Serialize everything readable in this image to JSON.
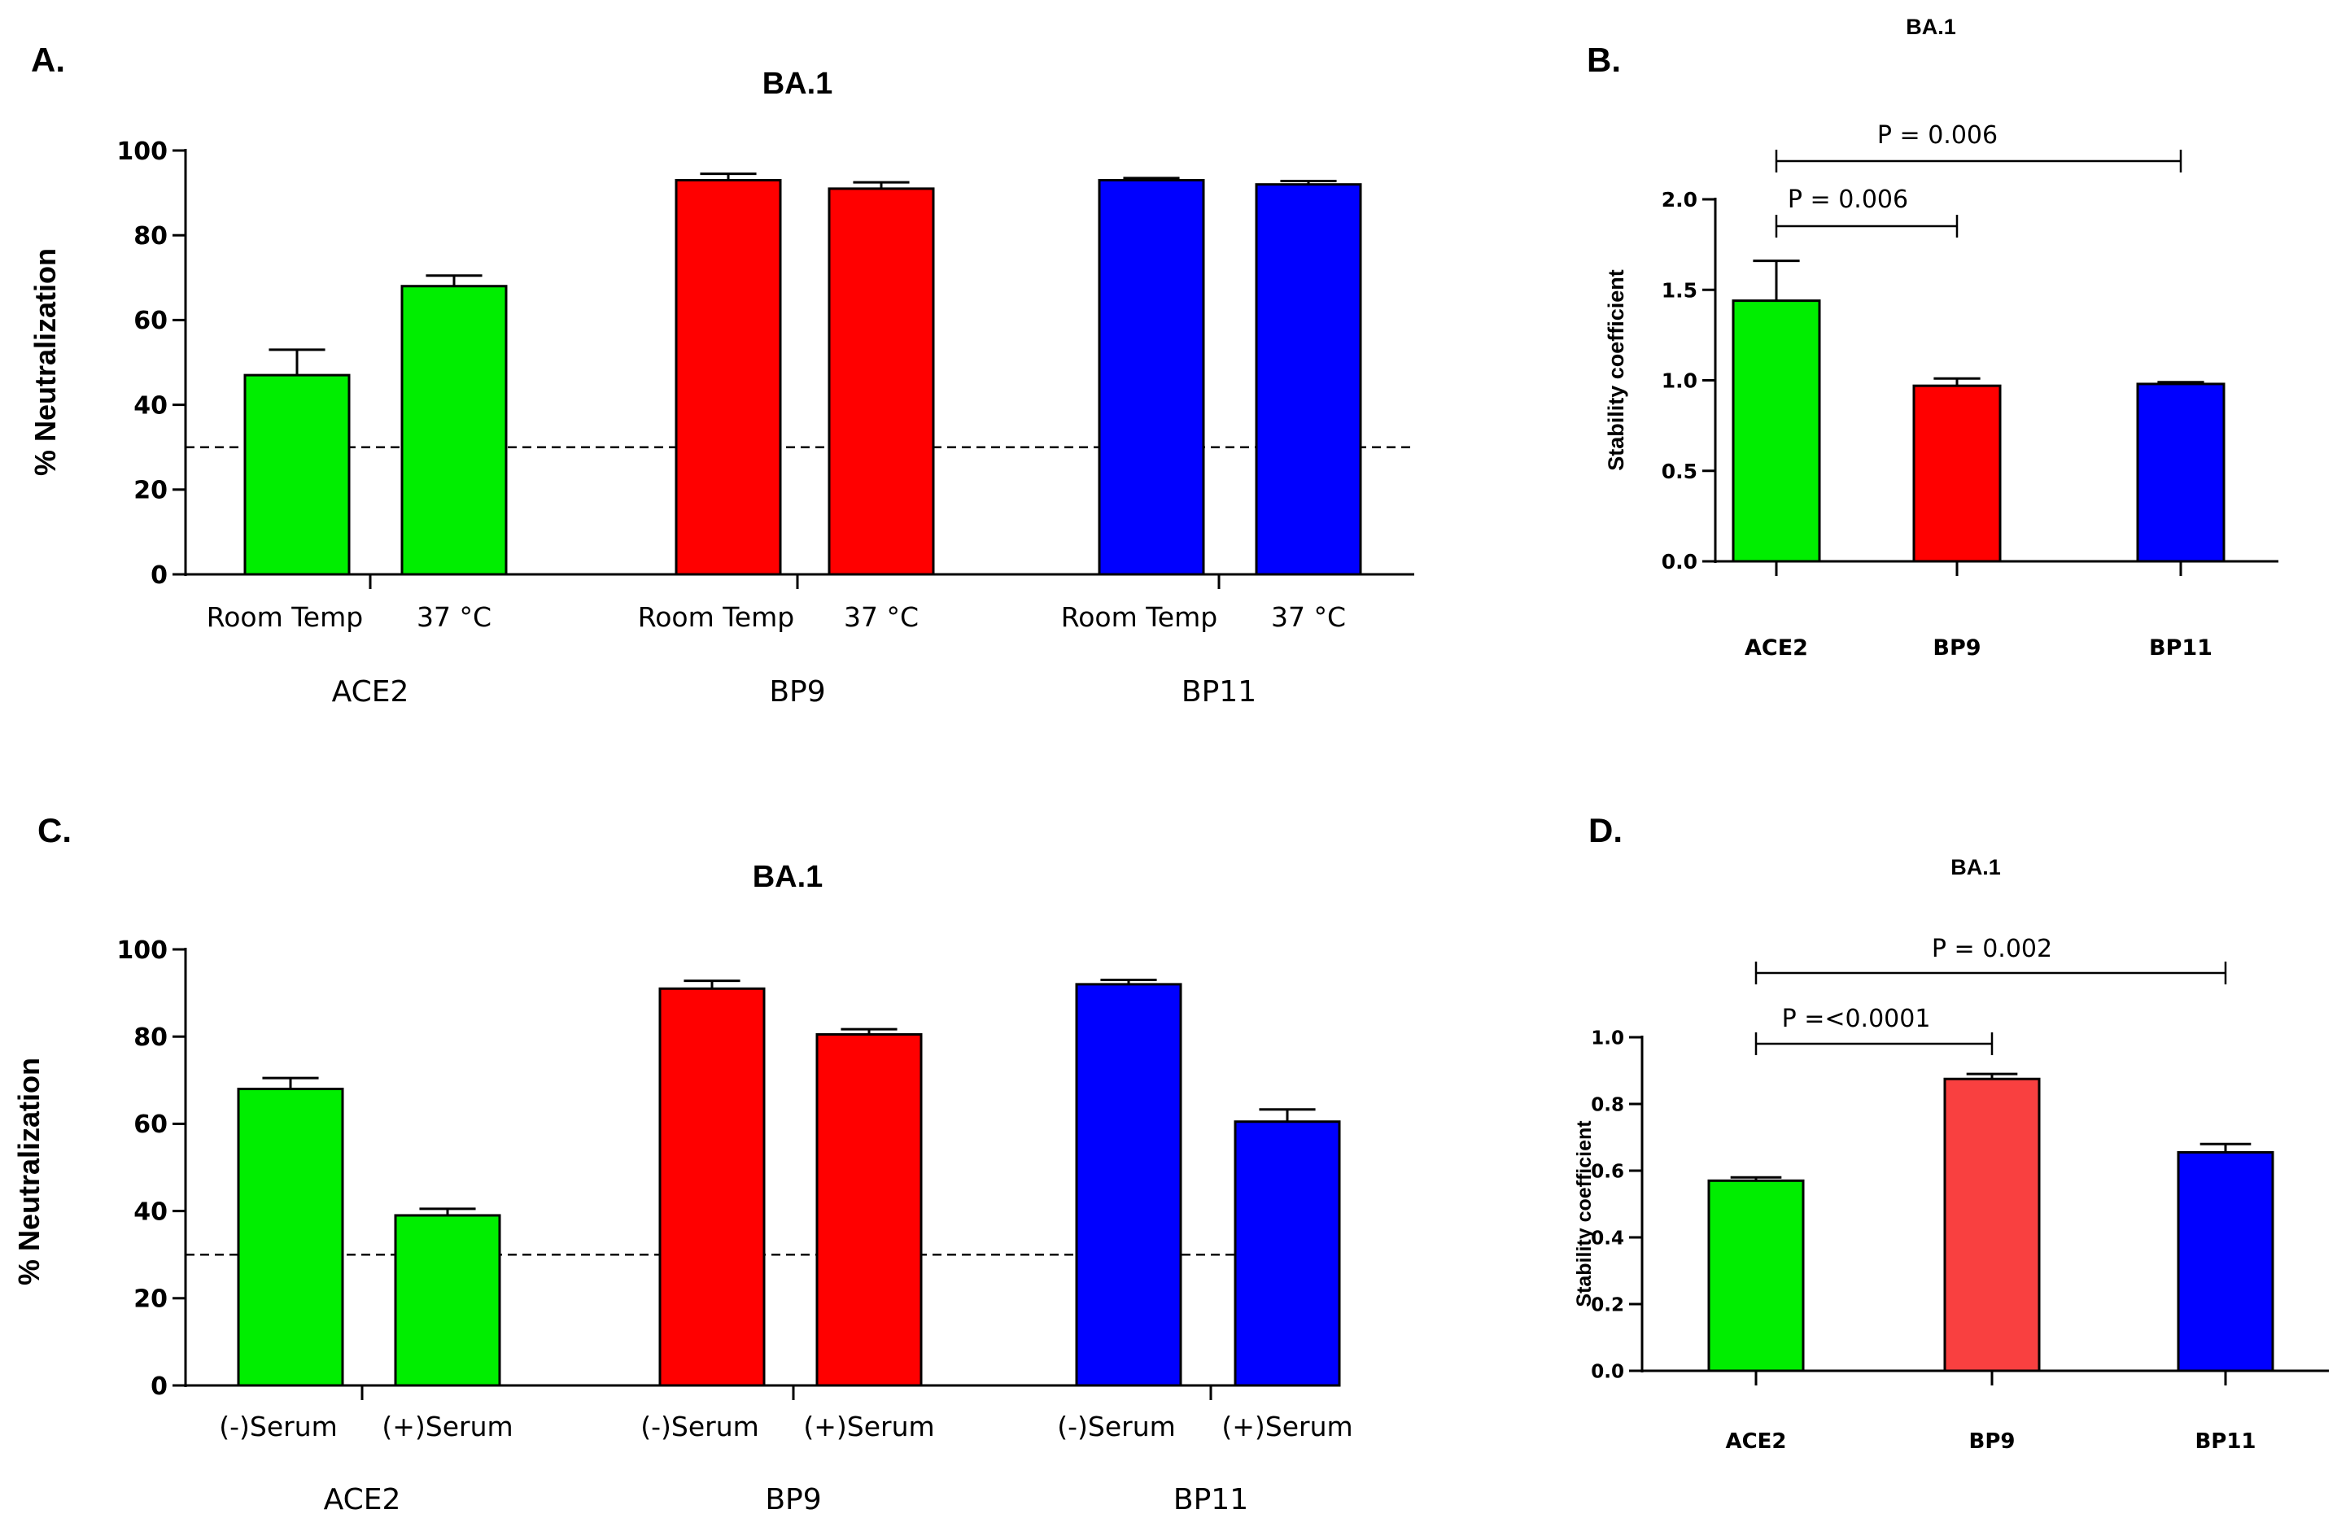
{
  "panel_labels": [
    "A.",
    "B.",
    "C.",
    "D."
  ],
  "chart_data": [
    {
      "id": "A",
      "type": "bar",
      "title": "BA.1",
      "ylabel": "% Neutralization",
      "xlabel": "",
      "ylim": [
        0,
        100
      ],
      "yticks": [
        0,
        20,
        40,
        60,
        80,
        100
      ],
      "threshold": 30,
      "groups": [
        "ACE2",
        "BP9",
        "BP11"
      ],
      "categories": [
        "Room Temp",
        "37 °C",
        "Room Temp",
        "37 °C",
        "Room Temp",
        "37 °C"
      ],
      "values": [
        47,
        68,
        93,
        91,
        93,
        92
      ],
      "errors": [
        6,
        2.5,
        1.5,
        1.5,
        0.5,
        0.8
      ],
      "colors": [
        "#00ee00",
        "#00ee00",
        "#ff0000",
        "#ff0000",
        "#0000ff",
        "#0000ff"
      ]
    },
    {
      "id": "B",
      "type": "bar",
      "title": "BA.1",
      "ylabel": "Stability coefficient",
      "xlabel": "",
      "ylim": [
        0,
        2.0
      ],
      "yticks": [
        "0.0",
        "0.5",
        "1.0",
        "1.5",
        "2.0"
      ],
      "categories": [
        "ACE2",
        "BP9",
        "BP11"
      ],
      "values": [
        1.44,
        0.97,
        0.98
      ],
      "errors": [
        0.22,
        0.04,
        0.01
      ],
      "colors": [
        "#00ee00",
        "#ff0000",
        "#0000ff"
      ],
      "annotations": [
        {
          "text": "P = 0.006",
          "from": 0,
          "to": 1
        },
        {
          "text": "P = 0.006",
          "from": 0,
          "to": 2
        }
      ]
    },
    {
      "id": "C",
      "type": "bar",
      "title": "BA.1",
      "ylabel": "% Neutralization",
      "xlabel": "",
      "ylim": [
        0,
        100
      ],
      "yticks": [
        0,
        20,
        40,
        60,
        80,
        100
      ],
      "threshold": 30,
      "groups": [
        "ACE2",
        "BP9",
        "BP11"
      ],
      "categories": [
        "(-)Serum",
        "(+)Serum",
        "(-)Serum",
        "(+)Serum",
        "(-)Serum",
        "(+)Serum"
      ],
      "values": [
        68,
        39,
        91,
        80.5,
        92,
        60.5
      ],
      "errors": [
        2.5,
        1.5,
        1.8,
        1.2,
        1.0,
        2.8
      ],
      "colors": [
        "#00ee00",
        "#00ee00",
        "#ff0000",
        "#ff0000",
        "#0000ff",
        "#0000ff"
      ]
    },
    {
      "id": "D",
      "type": "bar",
      "title": "BA.1",
      "ylabel": "Stability coefficient",
      "xlabel": "",
      "ylim": [
        0,
        1.0
      ],
      "yticks": [
        "0.0",
        "0.2",
        "0.4",
        "0.6",
        "0.8",
        "1.0"
      ],
      "categories": [
        "ACE2",
        "BP9",
        "BP11"
      ],
      "values": [
        0.57,
        0.875,
        0.655
      ],
      "errors": [
        0.01,
        0.015,
        0.025
      ],
      "colors": [
        "#00ee00",
        "#f94040",
        "#0000ff"
      ],
      "annotations": [
        {
          "text": "P  =<0.0001",
          "from": 0,
          "to": 1
        },
        {
          "text": "P = 0.002",
          "from": 0,
          "to": 2
        }
      ]
    }
  ]
}
